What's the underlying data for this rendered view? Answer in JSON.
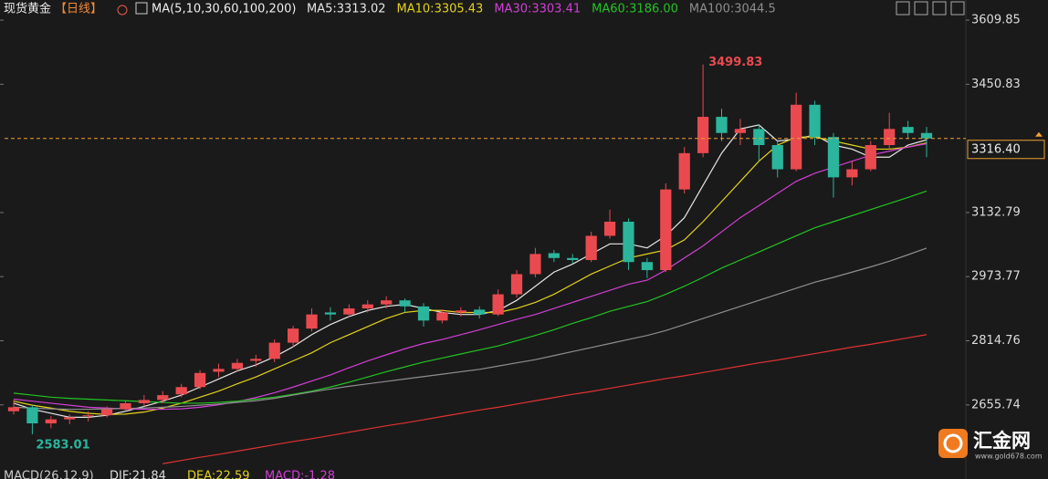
{
  "chart_data": {
    "type": "candlestick",
    "title": "现货黄金",
    "period": "【日线】",
    "indicator": "MA(5,10,30,60,100,200)",
    "ylim": [
      2506,
      3619
    ],
    "yticks": [
      3609.85,
      3450.83,
      3132.79,
      2973.77,
      2814.76,
      2655.74
    ],
    "up_color": "#ea4a4f",
    "down_color": "#2bb59c",
    "candles": {
      "open": [
        2640,
        2650,
        2610,
        2620,
        2628,
        2630,
        2645,
        2660,
        2668,
        2682,
        2700,
        2738,
        2745,
        2765,
        2770,
        2810,
        2845,
        2885,
        2880,
        2895,
        2905,
        2915,
        2900,
        2865,
        2885,
        2892,
        2880,
        2930,
        2980,
        3032,
        3020,
        3015,
        3075,
        3110,
        3010,
        2990,
        3190,
        3280,
        3370,
        3330,
        3340,
        3300,
        3240,
        3400,
        3320,
        3220,
        3240,
        3300,
        3345,
        3330
      ],
      "high": [
        2668,
        2655,
        2628,
        2632,
        2640,
        2652,
        2668,
        2680,
        2690,
        2708,
        2742,
        2758,
        2770,
        2780,
        2818,
        2852,
        2895,
        2898,
        2905,
        2915,
        2925,
        2920,
        2908,
        2892,
        2898,
        2900,
        2942,
        2990,
        3045,
        3040,
        3030,
        3085,
        3140,
        3118,
        3020,
        3205,
        3295,
        3499.83,
        3390,
        3365,
        3350,
        3310,
        3430,
        3410,
        3330,
        3260,
        3310,
        3380,
        3360,
        3345
      ],
      "low": [
        2632,
        2583.01,
        2598,
        2608,
        2615,
        2625,
        2640,
        2652,
        2660,
        2675,
        2695,
        2725,
        2738,
        2750,
        2762,
        2800,
        2838,
        2865,
        2872,
        2885,
        2895,
        2885,
        2850,
        2858,
        2875,
        2870,
        2876,
        2922,
        2972,
        3010,
        3005,
        3010,
        3068,
        2990,
        2970,
        2985,
        3180,
        3270,
        3310,
        3300,
        3260,
        3220,
        3235,
        3300,
        3170,
        3200,
        3235,
        3290,
        3315,
        3270
      ],
      "close": [
        2650,
        2610,
        2620,
        2625,
        2630,
        2645,
        2660,
        2668,
        2680,
        2700,
        2735,
        2745,
        2760,
        2770,
        2810,
        2845,
        2880,
        2880,
        2895,
        2905,
        2915,
        2900,
        2865,
        2885,
        2890,
        2880,
        2930,
        2980,
        3030,
        3020,
        3015,
        3075,
        3110,
        3010,
        2990,
        3190,
        3280,
        3370,
        3330,
        3340,
        3300,
        3240,
        3400,
        3320,
        3220,
        3240,
        3300,
        3340,
        3330,
        3316.4
      ]
    },
    "series": [
      {
        "name": "MA5:3313.02",
        "color": "#e6e6e6",
        "values": [
          2660,
          2645,
          2635,
          2625,
          2625,
          2630,
          2640,
          2652,
          2665,
          2680,
          2700,
          2720,
          2740,
          2755,
          2775,
          2800,
          2830,
          2855,
          2875,
          2890,
          2900,
          2905,
          2895,
          2885,
          2880,
          2880,
          2890,
          2915,
          2950,
          2985,
          3005,
          3030,
          3055,
          3055,
          3045,
          3075,
          3120,
          3200,
          3280,
          3340,
          3350,
          3310,
          3315,
          3325,
          3300,
          3290,
          3270,
          3270,
          3300,
          3313.02
        ]
      },
      {
        "name": "MA10:3305.43",
        "color": "#e3d21c",
        "values": [
          2665,
          2655,
          2648,
          2640,
          2635,
          2632,
          2633,
          2638,
          2648,
          2660,
          2675,
          2690,
          2708,
          2725,
          2745,
          2765,
          2785,
          2810,
          2830,
          2850,
          2870,
          2885,
          2890,
          2890,
          2885,
          2885,
          2885,
          2895,
          2910,
          2930,
          2955,
          2980,
          3000,
          3020,
          3030,
          3040,
          3065,
          3110,
          3160,
          3210,
          3260,
          3300,
          3320,
          3320,
          3310,
          3300,
          3290,
          3290,
          3295,
          3305.43
        ]
      },
      {
        "name": "MA30:3303.41",
        "color": "#d23fd6",
        "values": [
          2670,
          2665,
          2660,
          2655,
          2650,
          2648,
          2646,
          2645,
          2645,
          2646,
          2650,
          2656,
          2664,
          2674,
          2686,
          2700,
          2715,
          2730,
          2748,
          2765,
          2780,
          2795,
          2808,
          2818,
          2830,
          2842,
          2855,
          2868,
          2880,
          2895,
          2910,
          2925,
          2940,
          2955,
          2965,
          2990,
          3020,
          3050,
          3085,
          3120,
          3150,
          3180,
          3210,
          3230,
          3245,
          3260,
          3275,
          3285,
          3295,
          3303.41
        ]
      },
      {
        "name": "MA60:3186.00",
        "color": "#22c422",
        "values": [
          2685,
          2680,
          2675,
          2672,
          2670,
          2668,
          2666,
          2664,
          2662,
          2660,
          2660,
          2662,
          2665,
          2670,
          2675,
          2682,
          2690,
          2700,
          2712,
          2725,
          2738,
          2750,
          2762,
          2772,
          2782,
          2792,
          2802,
          2815,
          2828,
          2842,
          2858,
          2872,
          2888,
          2900,
          2912,
          2930,
          2950,
          2972,
          2995,
          3015,
          3035,
          3055,
          3075,
          3095,
          3110,
          3125,
          3140,
          3155,
          3170,
          3186
        ]
      },
      {
        "name": "MA100:3044.5",
        "color": "#8e8e8e",
        "values": [
          2650,
          2648,
          2646,
          2645,
          2645,
          2646,
          2647,
          2648,
          2650,
          2652,
          2655,
          2658,
          2662,
          2666,
          2672,
          2680,
          2688,
          2695,
          2702,
          2708,
          2714,
          2720,
          2726,
          2732,
          2738,
          2744,
          2752,
          2760,
          2768,
          2778,
          2788,
          2798,
          2808,
          2818,
          2828,
          2840,
          2855,
          2870,
          2885,
          2900,
          2915,
          2930,
          2945,
          2960,
          2972,
          2985,
          2998,
          3012,
          3028,
          3044.5
        ]
      },
      {
        "color": "#e03232",
        "values": [
          null,
          null,
          null,
          null,
          null,
          null,
          null,
          null,
          2510,
          2518,
          2526,
          2533,
          2541,
          2549,
          2557,
          2565,
          2572,
          2580,
          2588,
          2596,
          2604,
          2611,
          2619,
          2627,
          2635,
          2643,
          2650,
          2658,
          2666,
          2674,
          2682,
          2689,
          2697,
          2705,
          2713,
          2721,
          2728,
          2736,
          2744,
          2752,
          2760,
          2767,
          2775,
          2783,
          2791,
          2799,
          2806,
          2814,
          2822,
          2830
        ]
      }
    ],
    "last_price": {
      "value": 3316.4,
      "label": "3316.40"
    },
    "last_price_color": "#f0a030"
  },
  "macd": {
    "title": "MACD(26,12,9)",
    "items": [
      "DIF:21.84",
      "DEA:22.59",
      "MACD:-1.28"
    ]
  },
  "logo": {
    "name": "汇金网",
    "url": "www.gold678.com"
  }
}
